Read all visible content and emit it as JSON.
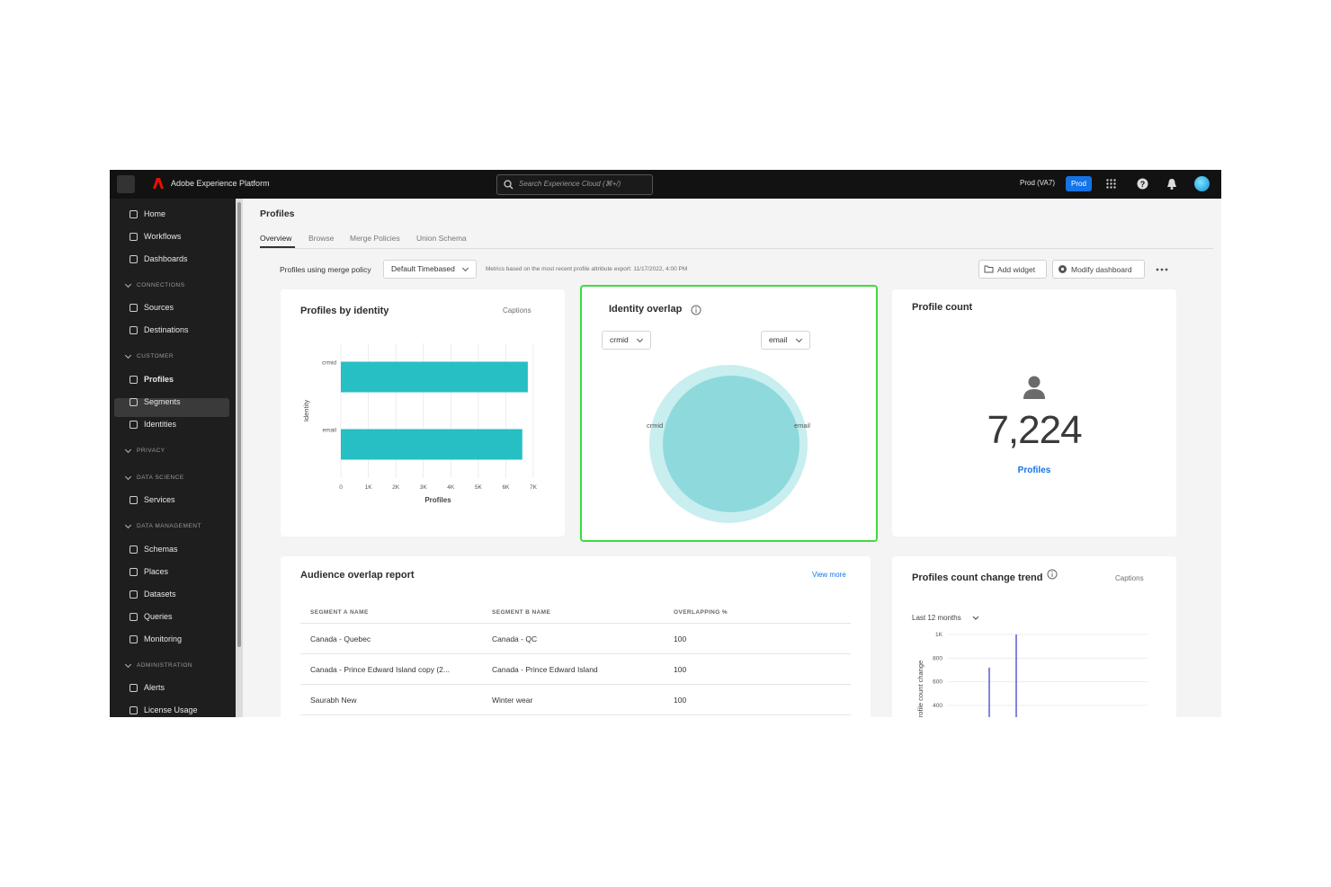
{
  "topbar": {
    "app_name": "Adobe Experience Platform",
    "search_placeholder": "Search Experience Cloud (⌘+/)",
    "sandbox": "Prod (VA7)",
    "sandbox_badge": "Prod"
  },
  "sidebar": {
    "items": [
      "Home",
      "Workflows",
      "Dashboards",
      "CONNECTIONS",
      "Sources",
      "Destinations",
      "CUSTOMER",
      "Profiles",
      "Segments",
      "Identities",
      "PRIVACY",
      "DATA SCIENCE",
      "Services",
      "DATA MANAGEMENT",
      "Schemas",
      "Places",
      "Datasets",
      "Queries",
      "Monitoring",
      "ADMINISTRATION",
      "Alerts",
      "License Usage"
    ]
  },
  "page": {
    "title": "Profiles",
    "tabs": [
      "Overview",
      "Browse",
      "Merge Policies",
      "Union Schema"
    ],
    "merge_policy_label": "Profiles using merge policy",
    "merge_policy": "Default Timebased",
    "metrics_note": "Metrics based on the most recent profile attribute export: 11/17/2022, 4:00 PM",
    "buttons": [
      "Add widget",
      "Modify dashboard"
    ]
  },
  "widgets": {
    "profiles_by_identity": {
      "type": "hbar",
      "title": "Profiles by identity",
      "captions": "Captions",
      "categories": [
        "crmid",
        "email"
      ],
      "values": [
        6800,
        6600
      ],
      "color": "#26bfc4",
      "xlabel": "Profiles",
      "ylabel": "Identity",
      "xlim": [
        0,
        7000
      ],
      "xticks": [
        0,
        {
          "value": 1000,
          "label": "1K"
        },
        {
          "value": 2000,
          "label": "2K"
        },
        {
          "value": 3000,
          "label": "3K"
        },
        {
          "value": 4000,
          "label": "4K"
        },
        {
          "value": 5000,
          "label": "5K"
        },
        {
          "value": 6000,
          "label": "6K"
        },
        {
          "value": 7000,
          "label": "7K"
        }
      ],
      "grid": true
    },
    "identity_overlap": {
      "title": "Identity overlap",
      "left": "crmid",
      "right": "email",
      "left_label": "crmid",
      "right_label": "email"
    },
    "profile_count": {
      "title": "Profile count",
      "count": "7,224",
      "label": "Profiles"
    },
    "audience_overlap": {
      "title": "Audience overlap report",
      "link": "View more",
      "columns": [
        "SEGMENT A NAME",
        "SEGMENT B NAME",
        "OVERLAPPING %"
      ],
      "rows": [
        [
          "Canada - Quebec",
          "Canada - QC",
          100
        ],
        [
          "Canada - Prince Edward Island copy (2...",
          "Canada - Prince Edward Island",
          100
        ],
        [
          "Saurabh New",
          "Winter wear",
          100
        ]
      ]
    },
    "trend": {
      "type": "spike",
      "title": "Profiles count change trend",
      "captions": "Captions",
      "period": "Last 12 months",
      "ylabel": "Profile count change",
      "values": [
        720,
        1000
      ],
      "color": "#5b5bd6",
      "ylim": [
        0,
        1000
      ],
      "yticks": [
        {
          "value": 1000,
          "label": "1K"
        },
        800,
        600,
        400
      ],
      "grid": true
    }
  }
}
